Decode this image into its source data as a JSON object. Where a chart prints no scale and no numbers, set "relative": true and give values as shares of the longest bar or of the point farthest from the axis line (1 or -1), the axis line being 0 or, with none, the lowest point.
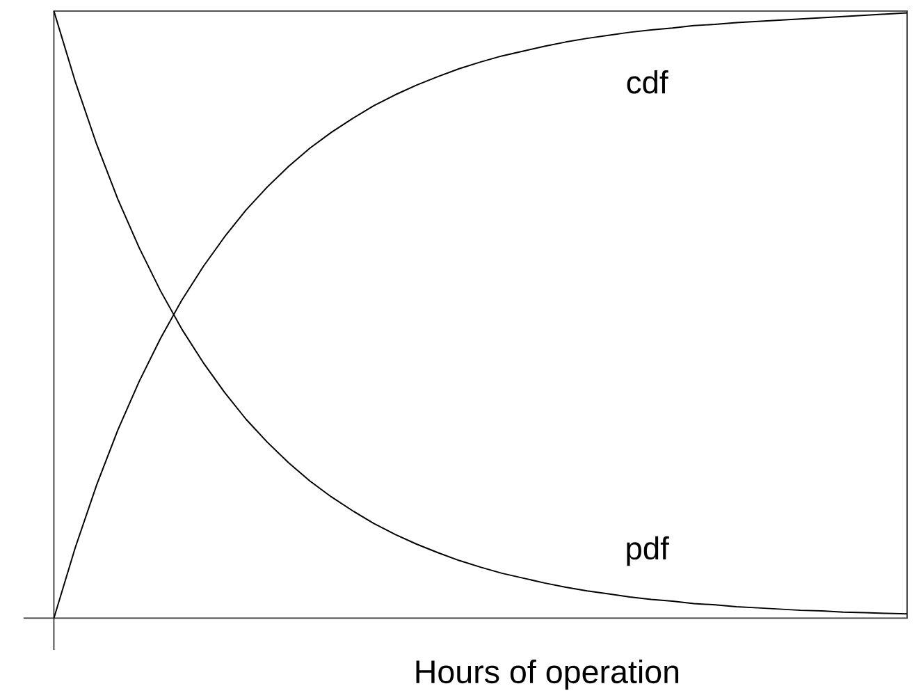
{
  "chart_data": {
    "type": "line",
    "xlabel": "Hours of operation",
    "relative": true,
    "categories": [
      null,
      null,
      null,
      null,
      null,
      null,
      null,
      null,
      null,
      null,
      null,
      null,
      null,
      null,
      null,
      null,
      null,
      null,
      null,
      null,
      null,
      null,
      null,
      null,
      null,
      null,
      null,
      null,
      null,
      null,
      null,
      null,
      null,
      null,
      null,
      null,
      null,
      null,
      null,
      null,
      null
    ],
    "series": [
      {
        "name": "pdf",
        "color": "#000000",
        "values": [
          1,
          0.884,
          0.781,
          0.69,
          0.61,
          0.539,
          0.476,
          0.421,
          0.372,
          0.328,
          0.29,
          0.256,
          0.226,
          0.2,
          0.177,
          0.156,
          0.138,
          0.122,
          0.108,
          0.095,
          0.084,
          0.074,
          0.066,
          0.058,
          0.051,
          0.045,
          0.04,
          0.035,
          0.031,
          0.028,
          0.024,
          0.022,
          0.019,
          0.017,
          0.015,
          0.013,
          0.012,
          0.01,
          0.009,
          0.008,
          0.007
        ]
      },
      {
        "name": "cdf",
        "color": "#000000",
        "values": [
          0,
          0.116,
          0.219,
          0.31,
          0.39,
          0.461,
          0.524,
          0.579,
          0.628,
          0.672,
          0.71,
          0.744,
          0.774,
          0.8,
          0.823,
          0.844,
          0.862,
          0.878,
          0.892,
          0.905,
          0.916,
          0.926,
          0.934,
          0.942,
          0.949,
          0.955,
          0.96,
          0.965,
          0.969,
          0.972,
          0.976,
          0.978,
          0.981,
          0.983,
          0.985,
          0.987,
          0.989,
          0.991,
          0.993,
          0.995,
          0.997
        ]
      }
    ]
  }
}
